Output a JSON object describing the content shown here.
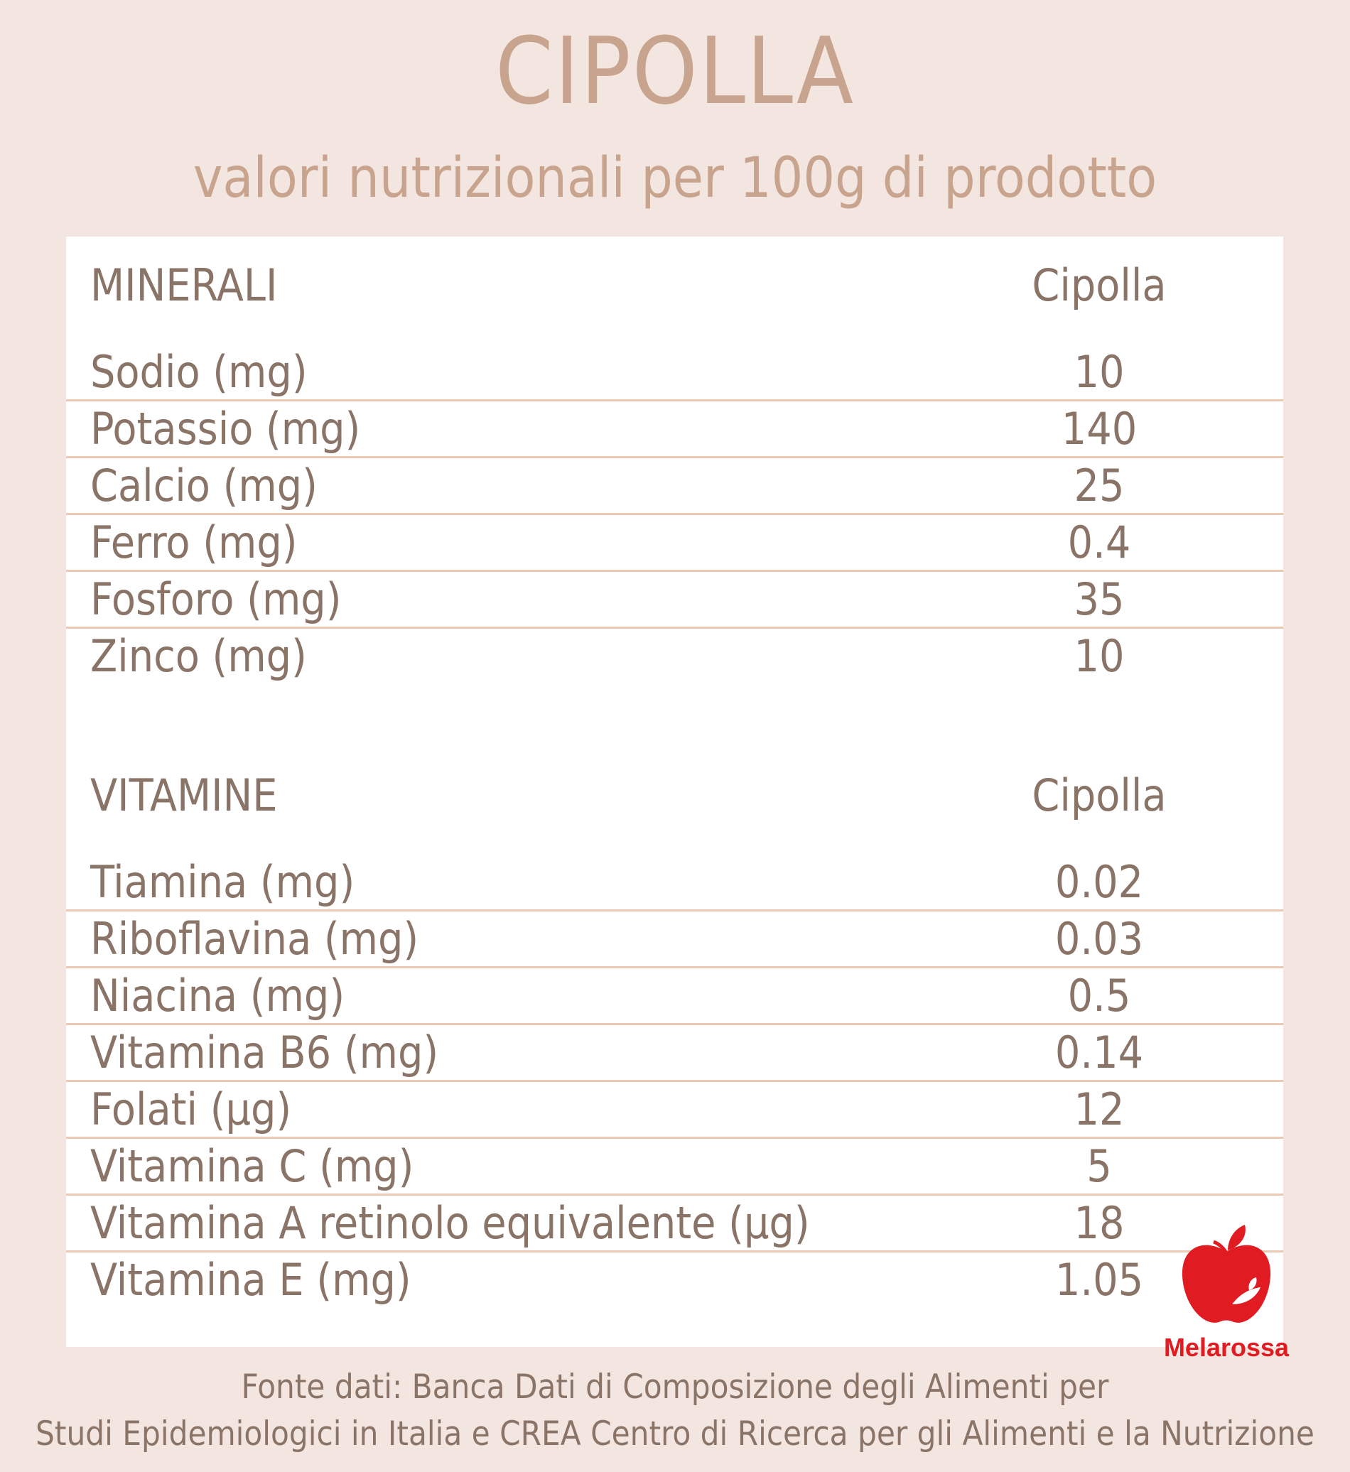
{
  "title": "CIPOLLA",
  "subtitle": "valori nutrizionali per 100g di prodotto",
  "minerals": {
    "heading": "MINERALI",
    "column": "Cipolla",
    "rows": [
      {
        "label": "Sodio (mg)",
        "value": "10"
      },
      {
        "label": "Potassio (mg)",
        "value": "140"
      },
      {
        "label": "Calcio (mg)",
        "value": "25"
      },
      {
        "label": "Ferro (mg)",
        "value": "0.4"
      },
      {
        "label": "Fosforo (mg)",
        "value": "35"
      },
      {
        "label": "Zinco (mg)",
        "value": "10"
      }
    ]
  },
  "vitamins": {
    "heading": "VITAMINE",
    "column": "Cipolla",
    "rows": [
      {
        "label": "Tiamina (mg)",
        "value": "0.02"
      },
      {
        "label": "Riboflavina (mg)",
        "value": "0.03"
      },
      {
        "label": "Niacina (mg)",
        "value": "0.5"
      },
      {
        "label": "Vitamina B6 (mg)",
        "value": "0.14"
      },
      {
        "label": "Folati (µg)",
        "value": "12"
      },
      {
        "label": "Vitamina C (mg)",
        "value": "5"
      },
      {
        "label": "Vitamina A retinolo equivalente (µg)",
        "value": "18"
      },
      {
        "label": "Vitamina E (mg)",
        "value": "1.05"
      }
    ]
  },
  "logo": {
    "brand": "Melarossa",
    "icon": "apple-icon",
    "color": "#e01b22"
  },
  "source": {
    "line1": "Fonte dati: Banca Dati di Composizione degli Alimenti per",
    "line2": "Studi Epidemiologici in Italia e CREA Centro di Ricerca per gli Alimenti e la Nutrizione"
  },
  "colors": {
    "background": "#f3e6e0",
    "title": "#c8a48e",
    "text": "#8a7468",
    "divider": "#ebc9b2"
  }
}
